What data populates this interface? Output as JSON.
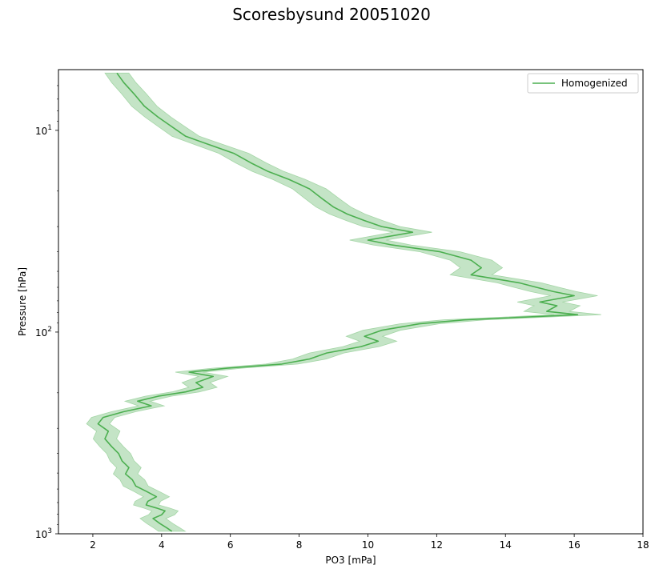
{
  "chart_data": {
    "type": "line",
    "title": "Scoresbysund 20051020",
    "xlabel": "PO3 [mPa]",
    "ylabel": "Pressure [hPa]",
    "xlim": [
      1,
      18
    ],
    "ylim": [
      1000,
      5
    ],
    "y_scale": "log",
    "x_ticks": [
      2,
      4,
      6,
      8,
      10,
      12,
      14,
      16,
      18
    ],
    "y_tick_labels": [
      {
        "value": 10,
        "base": "10",
        "exp": "1"
      },
      {
        "value": 100,
        "base": "10",
        "exp": "2"
      },
      {
        "value": 1000,
        "base": "10",
        "exp": "3"
      }
    ],
    "legend": {
      "position": "top-right"
    },
    "colors": {
      "line": "#4caf50",
      "band": "#a5d6a7"
    },
    "series": [
      {
        "name": "Homogenized",
        "points": [
          [
            4.3,
            972
          ],
          [
            4.15,
            935
          ],
          [
            3.95,
            890
          ],
          [
            3.75,
            840
          ],
          [
            4.0,
            805
          ],
          [
            4.1,
            770
          ],
          [
            3.85,
            745
          ],
          [
            3.55,
            720
          ],
          [
            3.6,
            690
          ],
          [
            3.85,
            655
          ],
          [
            3.55,
            615
          ],
          [
            3.25,
            580
          ],
          [
            3.15,
            540
          ],
          [
            2.95,
            505
          ],
          [
            3.05,
            470
          ],
          [
            2.85,
            435
          ],
          [
            2.75,
            400
          ],
          [
            2.55,
            370
          ],
          [
            2.35,
            338
          ],
          [
            2.45,
            310
          ],
          [
            2.15,
            285
          ],
          [
            2.3,
            265
          ],
          [
            2.9,
            248
          ],
          [
            3.7,
            232
          ],
          [
            3.3,
            220
          ],
          [
            3.9,
            208
          ],
          [
            4.7,
            198
          ],
          [
            5.2,
            188
          ],
          [
            5.0,
            178
          ],
          [
            5.5,
            166
          ],
          [
            4.8,
            158
          ],
          [
            5.9,
            151
          ],
          [
            7.5,
            144
          ],
          [
            8.3,
            136
          ],
          [
            8.8,
            127
          ],
          [
            9.8,
            118
          ],
          [
            10.3,
            111
          ],
          [
            9.9,
            105
          ],
          [
            10.4,
            98
          ],
          [
            11.5,
            91
          ],
          [
            12.8,
            87
          ],
          [
            16.1,
            82
          ],
          [
            15.2,
            79
          ],
          [
            15.5,
            74
          ],
          [
            15.0,
            71
          ],
          [
            16.0,
            66
          ],
          [
            15.4,
            63
          ],
          [
            14.9,
            60
          ],
          [
            14.4,
            57
          ],
          [
            13.0,
            52
          ],
          [
            13.3,
            48
          ],
          [
            13.0,
            44
          ],
          [
            12.1,
            40
          ],
          [
            10.7,
            37
          ],
          [
            10.0,
            35
          ],
          [
            11.3,
            32
          ],
          [
            10.4,
            30
          ],
          [
            9.9,
            28
          ],
          [
            9.4,
            26
          ],
          [
            9.0,
            24
          ],
          [
            8.7,
            22
          ],
          [
            8.3,
            19.5
          ],
          [
            7.7,
            17.5
          ],
          [
            7.1,
            16
          ],
          [
            6.6,
            14.5
          ],
          [
            6.1,
            13
          ],
          [
            5.4,
            11.8
          ],
          [
            4.7,
            10.7
          ],
          [
            4.3,
            9.6
          ],
          [
            3.9,
            8.6
          ],
          [
            3.5,
            7.6
          ],
          [
            3.2,
            6.6
          ],
          [
            2.9,
            5.8
          ],
          [
            2.7,
            5.2
          ]
        ]
      }
    ]
  }
}
